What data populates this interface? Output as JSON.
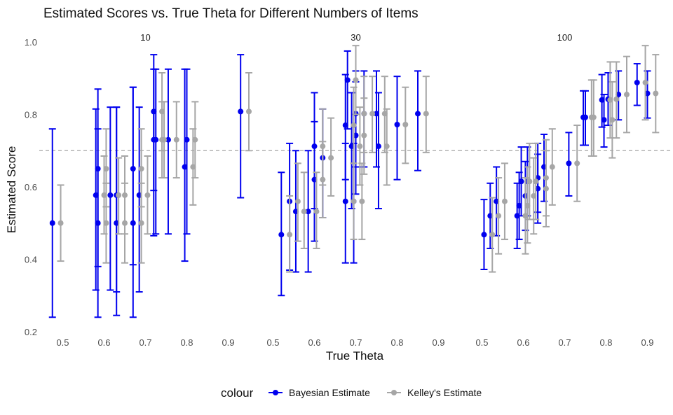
{
  "chart_data": {
    "type": "scatter",
    "title": "Estimated Scores vs. True Theta for Different Numbers of Items",
    "xlabel": "True Theta",
    "ylabel": "Estimated Score",
    "ylim": [
      0.2,
      1.0
    ],
    "y_ticks": [
      "0.2",
      "0.4",
      "0.6",
      "0.8",
      "1.0"
    ],
    "x_ticks": [
      "0.5",
      "0.6",
      "0.7",
      "0.8",
      "0.9"
    ],
    "xlim": [
      0.45,
      0.95
    ],
    "reference_line": {
      "y": 0.7,
      "style": "dashed",
      "color": "#b3b3b3"
    },
    "grid": false,
    "legend": {
      "title": "colour",
      "position": "bottom",
      "entries": [
        {
          "label": "Bayesian Estimate",
          "color": "#0000ee"
        },
        {
          "label": "Kelley's Estimate",
          "color": "#a6a6a6"
        }
      ]
    },
    "panels": [
      {
        "label": "10",
        "series": [
          {
            "name": "Bayesian Estimate",
            "points": [
              {
                "x": 0.475,
                "y": 0.5,
                "lo": 0.24,
                "hi": 0.76
              },
              {
                "x": 0.58,
                "y": 0.577,
                "lo": 0.315,
                "hi": 0.815
              },
              {
                "x": 0.585,
                "y": 0.65,
                "lo": 0.38,
                "hi": 0.87
              },
              {
                "x": 0.585,
                "y": 0.5,
                "lo": 0.24,
                "hi": 0.76
              },
              {
                "x": 0.615,
                "y": 0.577,
                "lo": 0.315,
                "hi": 0.82
              },
              {
                "x": 0.63,
                "y": 0.5,
                "lo": 0.245,
                "hi": 0.82
              },
              {
                "x": 0.63,
                "y": 0.577,
                "lo": 0.31,
                "hi": 0.82
              },
              {
                "x": 0.67,
                "y": 0.65,
                "lo": 0.385,
                "hi": 0.875
              },
              {
                "x": 0.67,
                "y": 0.5,
                "lo": 0.24,
                "hi": 0.875
              },
              {
                "x": 0.685,
                "y": 0.577,
                "lo": 0.31,
                "hi": 0.82
              },
              {
                "x": 0.72,
                "y": 0.808,
                "lo": 0.59,
                "hi": 0.965
              },
              {
                "x": 0.72,
                "y": 0.73,
                "lo": 0.465,
                "hi": 0.925
              },
              {
                "x": 0.725,
                "y": 0.73,
                "lo": 0.47,
                "hi": 0.925
              },
              {
                "x": 0.755,
                "y": 0.73,
                "lo": 0.47,
                "hi": 0.925
              },
              {
                "x": 0.795,
                "y": 0.655,
                "lo": 0.395,
                "hi": 0.925
              },
              {
                "x": 0.8,
                "y": 0.73,
                "lo": 0.47,
                "hi": 0.925
              },
              {
                "x": 0.93,
                "y": 0.808,
                "lo": 0.57,
                "hi": 0.965
              }
            ]
          },
          {
            "name": "Kelley's Estimate",
            "points": [
              {
                "x": 0.495,
                "y": 0.5,
                "lo": 0.395,
                "hi": 0.605
              },
              {
                "x": 0.6,
                "y": 0.577,
                "lo": 0.47,
                "hi": 0.685
              },
              {
                "x": 0.605,
                "y": 0.65,
                "lo": 0.545,
                "hi": 0.76
              },
              {
                "x": 0.605,
                "y": 0.5,
                "lo": 0.39,
                "hi": 0.61
              },
              {
                "x": 0.635,
                "y": 0.577,
                "lo": 0.47,
                "hi": 0.68
              },
              {
                "x": 0.65,
                "y": 0.5,
                "lo": 0.39,
                "hi": 0.61
              },
              {
                "x": 0.65,
                "y": 0.577,
                "lo": 0.47,
                "hi": 0.685
              },
              {
                "x": 0.69,
                "y": 0.65,
                "lo": 0.545,
                "hi": 0.76
              },
              {
                "x": 0.69,
                "y": 0.5,
                "lo": 0.39,
                "hi": 0.61
              },
              {
                "x": 0.705,
                "y": 0.577,
                "lo": 0.47,
                "hi": 0.685
              },
              {
                "x": 0.74,
                "y": 0.808,
                "lo": 0.7,
                "hi": 0.915
              },
              {
                "x": 0.74,
                "y": 0.73,
                "lo": 0.625,
                "hi": 0.835
              },
              {
                "x": 0.745,
                "y": 0.73,
                "lo": 0.625,
                "hi": 0.835
              },
              {
                "x": 0.775,
                "y": 0.73,
                "lo": 0.625,
                "hi": 0.835
              },
              {
                "x": 0.815,
                "y": 0.655,
                "lo": 0.55,
                "hi": 0.76
              },
              {
                "x": 0.82,
                "y": 0.73,
                "lo": 0.625,
                "hi": 0.835
              },
              {
                "x": 0.95,
                "y": 0.808,
                "lo": 0.7,
                "hi": 0.915
              }
            ]
          }
        ]
      },
      {
        "label": "30",
        "series": [
          {
            "name": "Bayesian Estimate",
            "points": [
              {
                "x": 0.52,
                "y": 0.468,
                "lo": 0.3,
                "hi": 0.64
              },
              {
                "x": 0.54,
                "y": 0.56,
                "lo": 0.37,
                "hi": 0.72
              },
              {
                "x": 0.555,
                "y": 0.532,
                "lo": 0.365,
                "hi": 0.7
              },
              {
                "x": 0.585,
                "y": 0.532,
                "lo": 0.365,
                "hi": 0.7
              },
              {
                "x": 0.6,
                "y": 0.712,
                "lo": 0.54,
                "hi": 0.86
              },
              {
                "x": 0.62,
                "y": 0.68,
                "lo": 0.515,
                "hi": 0.815
              },
              {
                "x": 0.6,
                "y": 0.62,
                "lo": 0.45,
                "hi": 0.78
              },
              {
                "x": 0.675,
                "y": 0.56,
                "lo": 0.39,
                "hi": 0.72
              },
              {
                "x": 0.675,
                "y": 0.77,
                "lo": 0.62,
                "hi": 0.91
              },
              {
                "x": 0.68,
                "y": 0.895,
                "lo": 0.76,
                "hi": 0.975
              },
              {
                "x": 0.69,
                "y": 0.712,
                "lo": 0.54,
                "hi": 0.86
              },
              {
                "x": 0.695,
                "y": 0.56,
                "lo": 0.39,
                "hi": 0.72
              },
              {
                "x": 0.7,
                "y": 0.742,
                "lo": 0.58,
                "hi": 0.89
              },
              {
                "x": 0.7,
                "y": 0.802,
                "lo": 0.655,
                "hi": 0.92
              },
              {
                "x": 0.72,
                "y": 0.802,
                "lo": 0.655,
                "hi": 0.92
              },
              {
                "x": 0.75,
                "y": 0.802,
                "lo": 0.655,
                "hi": 0.92
              },
              {
                "x": 0.755,
                "y": 0.712,
                "lo": 0.54,
                "hi": 0.86
              },
              {
                "x": 0.8,
                "y": 0.772,
                "lo": 0.62,
                "hi": 0.905
              },
              {
                "x": 0.85,
                "y": 0.802,
                "lo": 0.645,
                "hi": 0.92
              }
            ]
          },
          {
            "name": "Kelley's Estimate",
            "points": [
              {
                "x": 0.54,
                "y": 0.468,
                "lo": 0.365,
                "hi": 0.575
              },
              {
                "x": 0.56,
                "y": 0.56,
                "lo": 0.45,
                "hi": 0.665
              },
              {
                "x": 0.575,
                "y": 0.532,
                "lo": 0.43,
                "hi": 0.64
              },
              {
                "x": 0.605,
                "y": 0.532,
                "lo": 0.43,
                "hi": 0.64
              },
              {
                "x": 0.62,
                "y": 0.712,
                "lo": 0.605,
                "hi": 0.815
              },
              {
                "x": 0.64,
                "y": 0.68,
                "lo": 0.575,
                "hi": 0.79
              },
              {
                "x": 0.62,
                "y": 0.62,
                "lo": 0.515,
                "hi": 0.725
              },
              {
                "x": 0.695,
                "y": 0.56,
                "lo": 0.455,
                "hi": 0.665
              },
              {
                "x": 0.695,
                "y": 0.77,
                "lo": 0.665,
                "hi": 0.875
              },
              {
                "x": 0.7,
                "y": 0.895,
                "lo": 0.8,
                "hi": 0.99
              },
              {
                "x": 0.71,
                "y": 0.712,
                "lo": 0.605,
                "hi": 0.82
              },
              {
                "x": 0.715,
                "y": 0.56,
                "lo": 0.455,
                "hi": 0.665
              },
              {
                "x": 0.72,
                "y": 0.742,
                "lo": 0.635,
                "hi": 0.845
              },
              {
                "x": 0.72,
                "y": 0.802,
                "lo": 0.695,
                "hi": 0.905
              },
              {
                "x": 0.74,
                "y": 0.802,
                "lo": 0.695,
                "hi": 0.905
              },
              {
                "x": 0.77,
                "y": 0.802,
                "lo": 0.695,
                "hi": 0.905
              },
              {
                "x": 0.775,
                "y": 0.712,
                "lo": 0.605,
                "hi": 0.815
              },
              {
                "x": 0.82,
                "y": 0.772,
                "lo": 0.665,
                "hi": 0.875
              },
              {
                "x": 0.87,
                "y": 0.802,
                "lo": 0.695,
                "hi": 0.905
              }
            ]
          }
        ]
      },
      {
        "label": "100",
        "series": [
          {
            "name": "Bayesian Estimate",
            "points": [
              {
                "x": 0.505,
                "y": 0.468,
                "lo": 0.372,
                "hi": 0.565
              },
              {
                "x": 0.52,
                "y": 0.52,
                "lo": 0.43,
                "hi": 0.61
              },
              {
                "x": 0.535,
                "y": 0.56,
                "lo": 0.465,
                "hi": 0.655
              },
              {
                "x": 0.585,
                "y": 0.52,
                "lo": 0.43,
                "hi": 0.61
              },
              {
                "x": 0.59,
                "y": 0.548,
                "lo": 0.455,
                "hi": 0.64
              },
              {
                "x": 0.595,
                "y": 0.615,
                "lo": 0.52,
                "hi": 0.71
              },
              {
                "x": 0.605,
                "y": 0.575,
                "lo": 0.48,
                "hi": 0.67
              },
              {
                "x": 0.61,
                "y": 0.615,
                "lo": 0.52,
                "hi": 0.71
              },
              {
                "x": 0.635,
                "y": 0.595,
                "lo": 0.5,
                "hi": 0.69
              },
              {
                "x": 0.635,
                "y": 0.625,
                "lo": 0.53,
                "hi": 0.72
              },
              {
                "x": 0.65,
                "y": 0.655,
                "lo": 0.56,
                "hi": 0.745
              },
              {
                "x": 0.71,
                "y": 0.665,
                "lo": 0.575,
                "hi": 0.75
              },
              {
                "x": 0.745,
                "y": 0.792,
                "lo": 0.715,
                "hi": 0.865
              },
              {
                "x": 0.75,
                "y": 0.792,
                "lo": 0.715,
                "hi": 0.865
              },
              {
                "x": 0.79,
                "y": 0.84,
                "lo": 0.765,
                "hi": 0.91
              },
              {
                "x": 0.795,
                "y": 0.785,
                "lo": 0.71,
                "hi": 0.855
              },
              {
                "x": 0.805,
                "y": 0.842,
                "lo": 0.77,
                "hi": 0.915
              },
              {
                "x": 0.83,
                "y": 0.855,
                "lo": 0.785,
                "hi": 0.92
              },
              {
                "x": 0.875,
                "y": 0.888,
                "lo": 0.825,
                "hi": 0.94
              },
              {
                "x": 0.9,
                "y": 0.858,
                "lo": 0.79,
                "hi": 0.92
              }
            ]
          },
          {
            "name": "Kelley's Estimate",
            "points": [
              {
                "x": 0.525,
                "y": 0.468,
                "lo": 0.365,
                "hi": 0.57
              },
              {
                "x": 0.54,
                "y": 0.52,
                "lo": 0.415,
                "hi": 0.625
              },
              {
                "x": 0.555,
                "y": 0.56,
                "lo": 0.455,
                "hi": 0.665
              },
              {
                "x": 0.605,
                "y": 0.52,
                "lo": 0.415,
                "hi": 0.625
              },
              {
                "x": 0.61,
                "y": 0.548,
                "lo": 0.445,
                "hi": 0.655
              },
              {
                "x": 0.615,
                "y": 0.615,
                "lo": 0.51,
                "hi": 0.72
              },
              {
                "x": 0.625,
                "y": 0.575,
                "lo": 0.47,
                "hi": 0.68
              },
              {
                "x": 0.63,
                "y": 0.615,
                "lo": 0.51,
                "hi": 0.72
              },
              {
                "x": 0.655,
                "y": 0.595,
                "lo": 0.49,
                "hi": 0.7
              },
              {
                "x": 0.655,
                "y": 0.625,
                "lo": 0.52,
                "hi": 0.73
              },
              {
                "x": 0.67,
                "y": 0.655,
                "lo": 0.55,
                "hi": 0.76
              },
              {
                "x": 0.73,
                "y": 0.665,
                "lo": 0.56,
                "hi": 0.77
              },
              {
                "x": 0.765,
                "y": 0.792,
                "lo": 0.685,
                "hi": 0.895
              },
              {
                "x": 0.77,
                "y": 0.792,
                "lo": 0.685,
                "hi": 0.895
              },
              {
                "x": 0.81,
                "y": 0.84,
                "lo": 0.735,
                "hi": 0.945
              },
              {
                "x": 0.815,
                "y": 0.785,
                "lo": 0.68,
                "hi": 0.89
              },
              {
                "x": 0.825,
                "y": 0.842,
                "lo": 0.735,
                "hi": 0.945
              },
              {
                "x": 0.85,
                "y": 0.855,
                "lo": 0.75,
                "hi": 0.96
              },
              {
                "x": 0.895,
                "y": 0.888,
                "lo": 0.785,
                "hi": 0.99
              },
              {
                "x": 0.92,
                "y": 0.858,
                "lo": 0.75,
                "hi": 0.965
              }
            ]
          }
        ]
      }
    ]
  }
}
